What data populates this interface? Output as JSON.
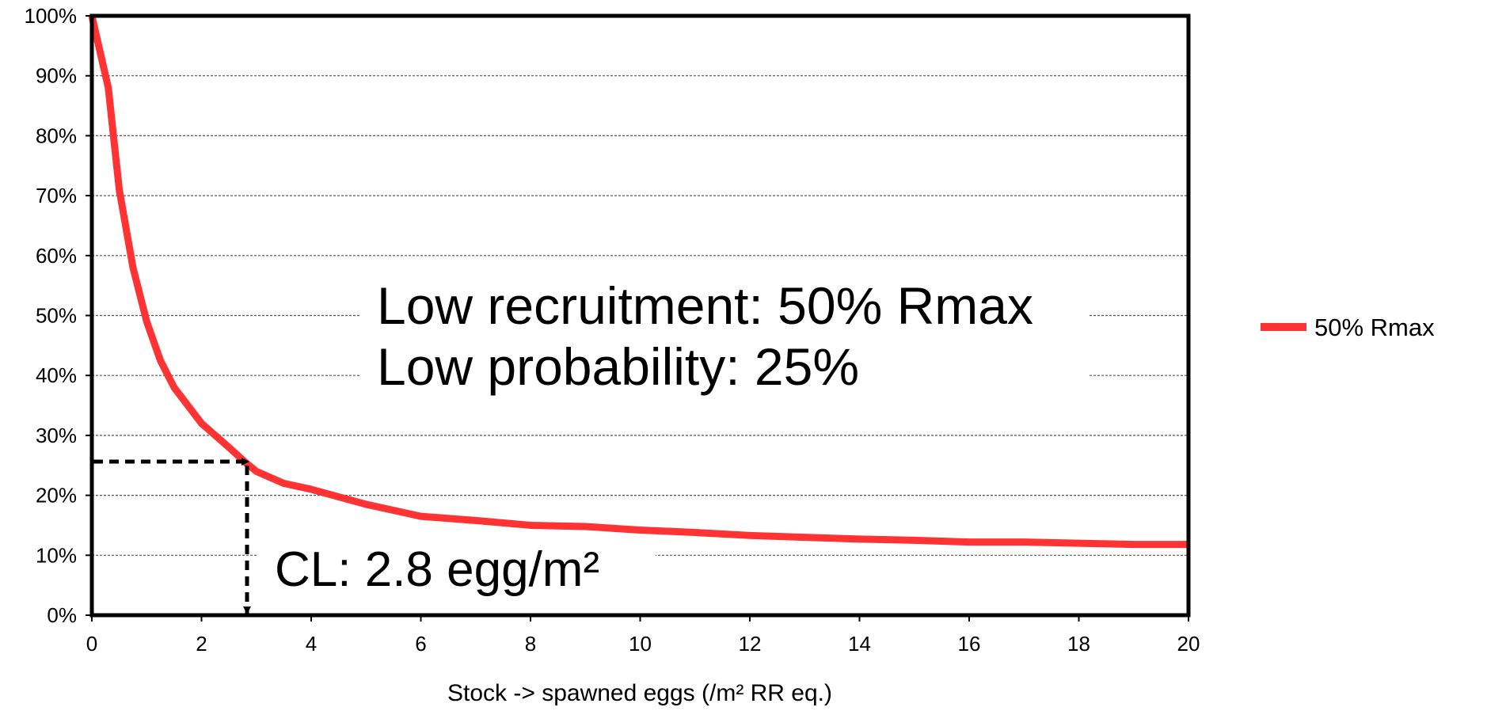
{
  "chart_data": {
    "type": "line",
    "x_label": "Stock -> spawned eggs (/m² RR eq.)",
    "annotations": [
      "Low recruitment: 50% Rmax",
      "Low probability: 25%",
      "CL: 2.8 egg/m²"
    ],
    "x": [
      0,
      0.3,
      0.5,
      0.75,
      1,
      1.25,
      1.5,
      2,
      2.5,
      2.8,
      3,
      3.5,
      4,
      5,
      6,
      7,
      8,
      9,
      10,
      11,
      12,
      13,
      14,
      15,
      16,
      17,
      18,
      19,
      20
    ],
    "series": [
      {
        "name": "50% Rmax",
        "color": "#ff3333",
        "values": [
          100,
          88,
          71,
          58,
          49,
          42.5,
          38,
          32,
          28,
          25.5,
          24,
          22,
          21,
          18.5,
          16.5,
          15.8,
          15,
          14.8,
          14.2,
          13.8,
          13.3,
          13,
          12.7,
          12.5,
          12.2,
          12.2,
          12,
          11.8,
          11.8
        ]
      }
    ],
    "xlim": [
      0,
      20
    ],
    "xticks": [
      0,
      2,
      4,
      6,
      8,
      10,
      12,
      14,
      16,
      18,
      20
    ],
    "ylim": [
      0,
      100
    ],
    "yticks": [
      {
        "value": 0,
        "label": "0%"
      },
      {
        "value": 10,
        "label": "10%"
      },
      {
        "value": 20,
        "label": "20%"
      },
      {
        "value": 30,
        "label": "30%"
      },
      {
        "value": 40,
        "label": "40%"
      },
      {
        "value": 50,
        "label": "50%"
      },
      {
        "value": 60,
        "label": "60%"
      },
      {
        "value": 70,
        "label": "70%"
      },
      {
        "value": 80,
        "label": "80%"
      },
      {
        "value": 90,
        "label": "90%"
      },
      {
        "value": 100,
        "label": "100%"
      }
    ],
    "grid": true,
    "legend": "right"
  }
}
